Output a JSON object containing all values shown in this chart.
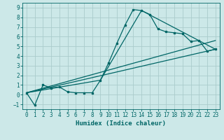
{
  "xlabel": "Humidex (Indice chaleur)",
  "ylabel": "",
  "background_color": "#cce8e8",
  "grid_color": "#aacccc",
  "line_color": "#006666",
  "xlim": [
    -0.5,
    23.5
  ],
  "ylim": [
    -1.5,
    9.5
  ],
  "xticks": [
    0,
    1,
    2,
    3,
    4,
    5,
    6,
    7,
    8,
    9,
    10,
    11,
    12,
    13,
    14,
    15,
    16,
    17,
    18,
    19,
    20,
    21,
    22,
    23
  ],
  "yticks": [
    -1,
    0,
    1,
    2,
    3,
    4,
    5,
    6,
    7,
    8,
    9
  ],
  "series1_x": [
    0,
    1,
    2,
    3,
    4,
    5,
    6,
    7,
    8,
    9,
    10,
    11,
    12,
    13,
    14,
    15,
    16,
    17,
    18,
    19,
    20,
    21,
    22,
    23
  ],
  "series1_y": [
    0.2,
    -1.1,
    1.0,
    0.7,
    0.8,
    0.3,
    0.2,
    0.2,
    0.2,
    1.5,
    3.3,
    5.3,
    7.2,
    8.8,
    8.7,
    8.3,
    6.8,
    6.5,
    6.4,
    6.3,
    5.5,
    5.6,
    4.5,
    4.7
  ],
  "series2_x": [
    0,
    23
  ],
  "series2_y": [
    0.2,
    4.7
  ],
  "series3_x": [
    0,
    23
  ],
  "series3_y": [
    0.2,
    5.6
  ],
  "series4_x": [
    0,
    9,
    14,
    23
  ],
  "series4_y": [
    0.2,
    1.5,
    8.7,
    4.7
  ]
}
